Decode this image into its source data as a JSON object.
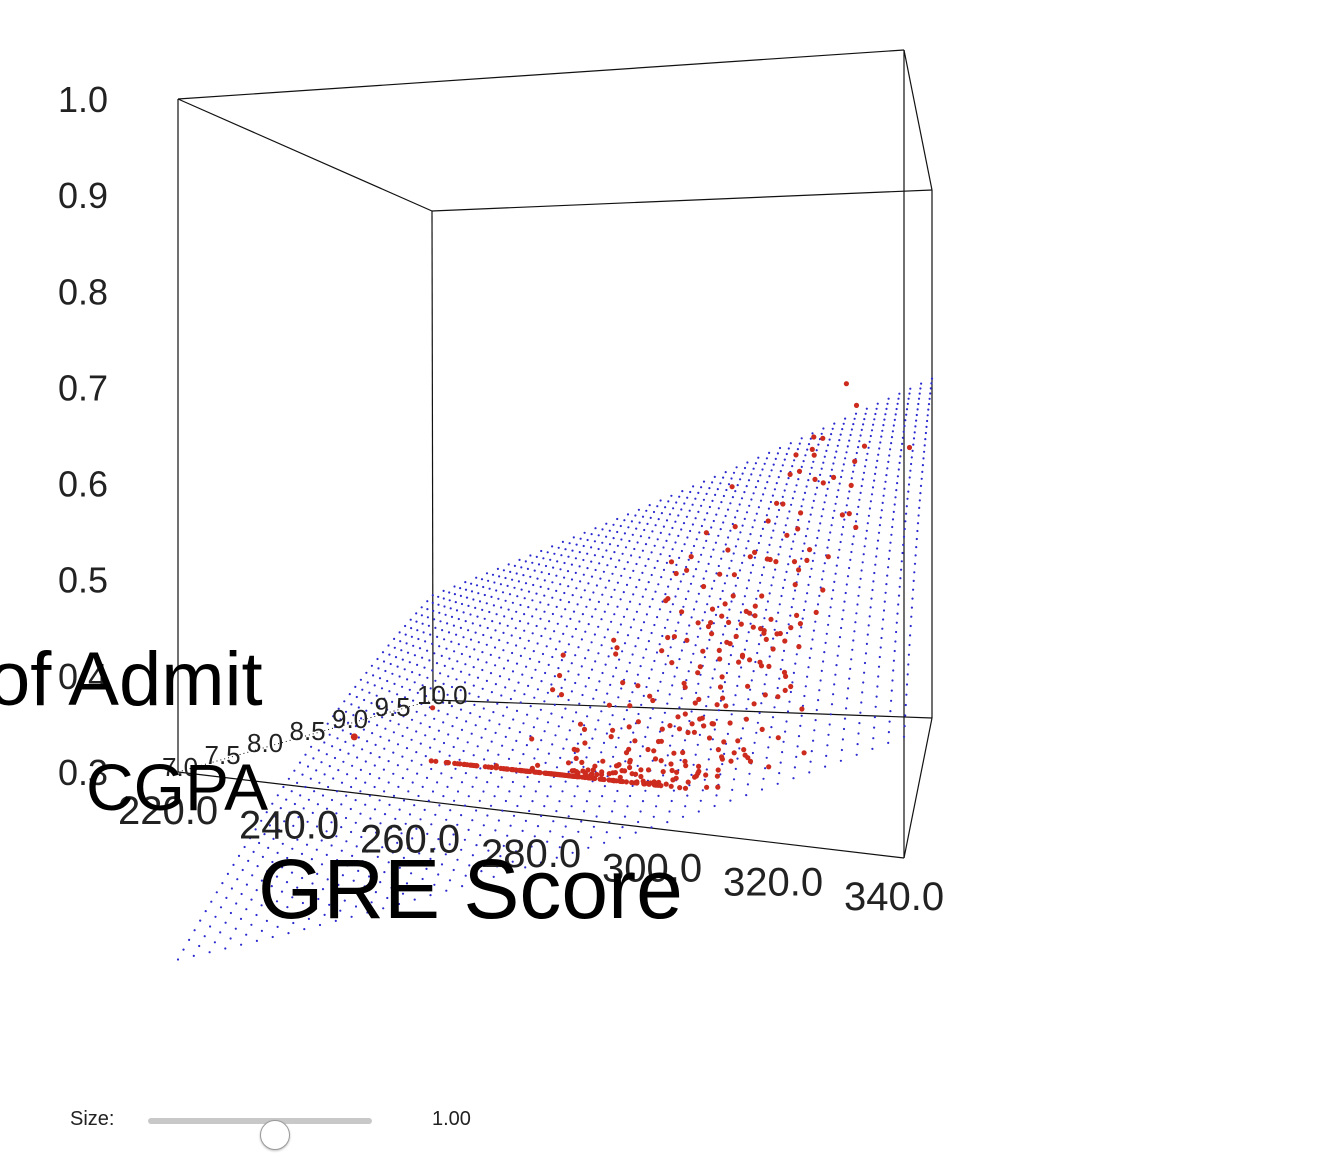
{
  "chart_data": {
    "type": "scatter",
    "title": "",
    "xlabel": "GRE Score",
    "ylabel": "CGPA",
    "zlabel": "of Admit",
    "x_range": [
      220,
      340
    ],
    "y_range": [
      7.0,
      10.0
    ],
    "z_range": [
      0.3,
      1.0
    ],
    "x_ticks": [
      "220.0",
      "240.0",
      "260.0",
      "280.0",
      "300.0",
      "320.0",
      "340.0"
    ],
    "y_ticks": [
      "7.0",
      "7.5",
      "8.0",
      "8.5",
      "9.0",
      "9.5",
      "10.0"
    ],
    "z_ticks": [
      "0.3",
      "0.4",
      "0.5",
      "0.6",
      "0.7",
      "0.8",
      "0.9",
      "1.0"
    ],
    "series": [
      {
        "kind": "points",
        "color": "#cc2b1e",
        "count": 400
      },
      {
        "kind": "fitted-surface",
        "color": "#2a2ad0"
      }
    ],
    "grid": false,
    "legend": "none"
  },
  "controls": {
    "size_label": "Size:",
    "size_value": "1.00",
    "size_fraction": 0.5
  }
}
